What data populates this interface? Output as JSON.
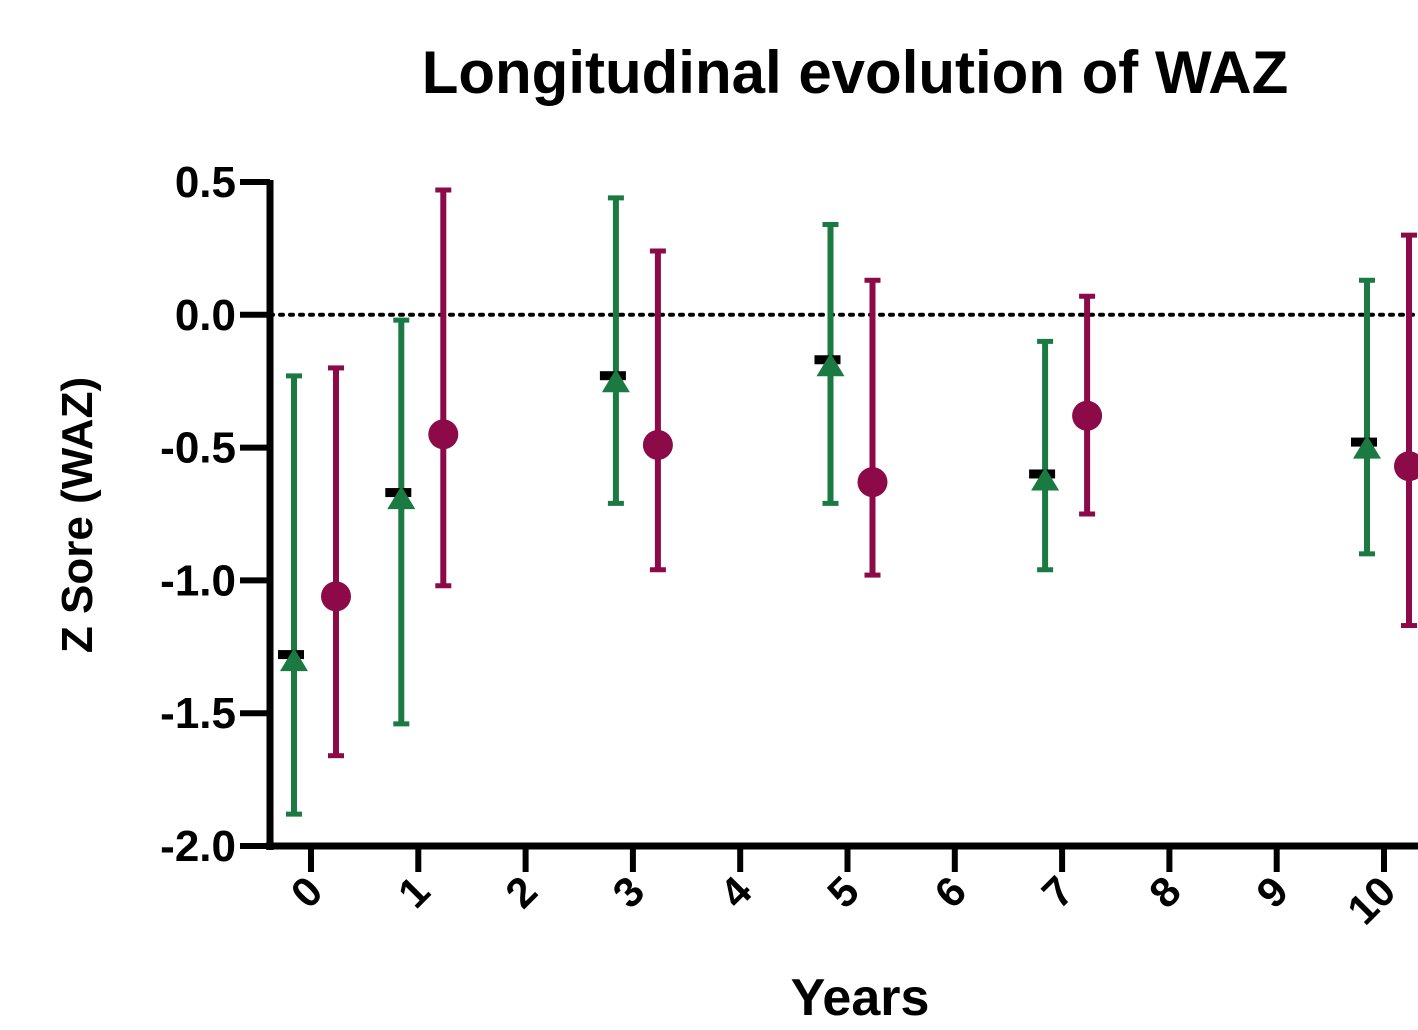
{
  "chart_data": {
    "type": "scatter",
    "title": "Longitudinal evolution of WAZ",
    "xlabel": "Years",
    "ylabel": "Z Sore (WAZ)",
    "x_ticks": [
      "0",
      "1",
      "2",
      "3",
      "4",
      "5",
      "6",
      "7",
      "8",
      "9",
      "10"
    ],
    "y_ticks": [
      "0.5",
      "0.0",
      "-0.5",
      "-1.0",
      "-1.5",
      "-2.0"
    ],
    "ylim": [
      -2.0,
      0.5
    ],
    "xlim": [
      -0.5,
      10.5
    ],
    "reference_line": 0.0,
    "series": [
      {
        "color": "#1a7a41",
        "marker": "triangle",
        "points": [
          {
            "x": 0,
            "y": -1.3,
            "low": -1.88,
            "high": -0.23
          },
          {
            "x": 1,
            "y": -0.69,
            "low": -1.54,
            "high": -0.02
          },
          {
            "x": 3,
            "y": -0.25,
            "low": -0.71,
            "high": 0.44
          },
          {
            "x": 5,
            "y": -0.19,
            "low": -0.71,
            "high": 0.34
          },
          {
            "x": 7,
            "y": -0.62,
            "low": -0.96,
            "high": -0.1
          },
          {
            "x": 10,
            "y": -0.5,
            "low": -0.9,
            "high": 0.13
          }
        ]
      },
      {
        "color": "#8b0a47",
        "marker": "circle",
        "points": [
          {
            "x": 0,
            "y": -1.06,
            "low": -1.66,
            "high": -0.2
          },
          {
            "x": 1,
            "y": -0.45,
            "low": -1.02,
            "high": 0.47
          },
          {
            "x": 3,
            "y": -0.49,
            "low": -0.96,
            "high": 0.24
          },
          {
            "x": 5,
            "y": -0.63,
            "low": -0.98,
            "high": 0.13
          },
          {
            "x": 7,
            "y": -0.38,
            "low": -0.75,
            "high": 0.07
          },
          {
            "x": 10,
            "y": -0.57,
            "low": -1.17,
            "high": 0.3
          }
        ]
      }
    ]
  }
}
